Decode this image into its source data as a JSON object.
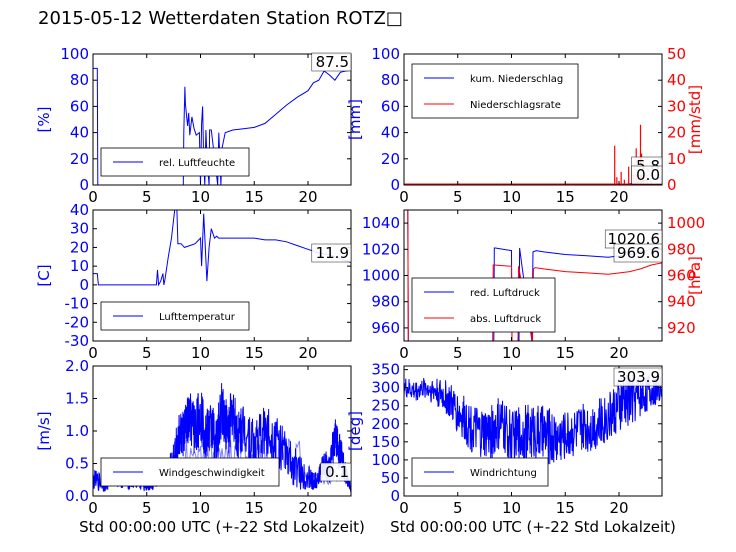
{
  "title": "2015-05-12 Wetterdaten Station ROTZ\u0000",
  "title_display": "2015-05-12 Wetterdaten Station ROTZ□",
  "colors": {
    "primary": "#0000ff",
    "secondary": "#ff0000",
    "light": "#8080ff"
  },
  "chart_data": [
    {
      "id": "humidity",
      "type": "line",
      "ylabel": "[%]",
      "xlabel": "",
      "xlim": [
        0,
        24
      ],
      "ylim": [
        0,
        100
      ],
      "xticks": [
        0,
        5,
        10,
        15,
        20
      ],
      "yticks": [
        0,
        20,
        40,
        60,
        80,
        100
      ],
      "legend": [
        "rel. Luftfeuchte"
      ],
      "legend_loc": "lower-left",
      "last_value": "87.5",
      "series": [
        {
          "name": "rel. Luftfeuchte",
          "color": "#0000ff",
          "x": [
            0,
            0.1,
            0.4,
            0.45,
            0.5,
            3,
            6,
            8.4,
            8.45,
            8.55,
            8.6,
            8.8,
            8.9,
            9.0,
            9.2,
            9.4,
            9.6,
            9.9,
            10.0,
            10.1,
            10.2,
            10.3,
            10.4,
            10.5,
            10.6,
            10.7,
            10.8,
            10.85,
            11.0,
            11.6,
            11.7,
            11.8,
            11.9,
            12.0,
            12.3,
            13,
            14,
            15,
            16,
            17,
            18,
            19,
            20,
            20.5,
            21,
            21.5,
            22,
            22.5,
            23,
            23.5,
            24
          ],
          "y": [
            89,
            89,
            89,
            0,
            0,
            0,
            0,
            0,
            40,
            75,
            62,
            45,
            55,
            38,
            52,
            43,
            38,
            40,
            0,
            47,
            60,
            18,
            0,
            42,
            22,
            10,
            0,
            42,
            42,
            0,
            40,
            20,
            0,
            28,
            40,
            42,
            43,
            44,
            47,
            54,
            61,
            67,
            72,
            78,
            80,
            87,
            84,
            80,
            86,
            87,
            87.5
          ]
        }
      ]
    },
    {
      "id": "precip",
      "type": "line",
      "ylabel": "[mm]",
      "ylabel_right": "[mm/std]",
      "xlabel": "",
      "xlim": [
        0,
        24
      ],
      "ylim": [
        0,
        100
      ],
      "ylim_right": [
        0,
        50
      ],
      "xticks": [
        0,
        5,
        10,
        15,
        20
      ],
      "yticks": [
        0,
        20,
        40,
        60,
        80,
        100
      ],
      "yticks_right": [
        0,
        10,
        20,
        30,
        40,
        50
      ],
      "legend": [
        "kum. Niederschlag",
        "Niederschlagsrate"
      ],
      "legend_loc": "upper-left",
      "last_value": "5.8",
      "last_value_right": "0.0",
      "series": [
        {
          "name": "kum. Niederschlag",
          "color": "#0000ff",
          "axis": "left",
          "x": [
            0,
            19.5,
            20,
            20.5,
            21,
            21.5,
            22,
            22.5,
            23,
            23.5,
            24
          ],
          "y": [
            0,
            0,
            0.2,
            0.5,
            1,
            1.5,
            2.5,
            3.5,
            4.8,
            5.5,
            5.8
          ]
        },
        {
          "name": "Niederschlagsrate",
          "color": "#ff0000",
          "axis": "right",
          "x": [
            19.6,
            19.8,
            20.2,
            20.5,
            20.9,
            21.2,
            21.4,
            21.6,
            21.8,
            22.0,
            22.1,
            22.3,
            22.6,
            23.0
          ],
          "y": [
            15,
            3,
            5,
            2,
            7,
            4,
            8,
            14,
            6,
            23,
            12,
            9,
            5,
            2
          ]
        }
      ]
    },
    {
      "id": "temperature",
      "type": "line",
      "ylabel": "[C]",
      "xlabel": "",
      "xlim": [
        0,
        24
      ],
      "ylim": [
        -30,
        40
      ],
      "xticks": [
        0,
        5,
        10,
        15,
        20
      ],
      "yticks": [
        -30,
        -20,
        -10,
        0,
        10,
        20,
        30,
        40
      ],
      "legend": [
        "Lufttemperatur"
      ],
      "legend_loc": "lower-left",
      "last_value": "11.9",
      "series": [
        {
          "name": "Lufttemperatur",
          "color": "#0000ff",
          "x": [
            0,
            0.4,
            0.5,
            3,
            5.9,
            6,
            6.1,
            6.3,
            6.5,
            6.6,
            6.7,
            7,
            7.3,
            7.6,
            7.8,
            7.9,
            8.2,
            8.5,
            9,
            9.5,
            10,
            10.1,
            10.3,
            10.6,
            10.8,
            11.0,
            11.3,
            11.5,
            11.7,
            12,
            13,
            14,
            15,
            16,
            17,
            18,
            19,
            20,
            21,
            22,
            23,
            24
          ],
          "y": [
            6,
            6,
            0,
            0,
            0,
            8,
            0,
            2,
            6,
            0,
            3,
            15,
            25,
            40,
            40,
            22,
            22,
            20,
            21,
            22,
            25,
            10,
            38,
            2,
            20,
            30,
            25,
            26,
            25,
            25,
            25,
            25,
            25,
            24,
            24,
            23,
            21,
            19,
            17,
            16,
            14,
            12
          ]
        }
      ]
    },
    {
      "id": "pressure",
      "type": "line",
      "ylabel": "",
      "ylabel_right": "[hPa]",
      "xlabel": "",
      "xlim": [
        0,
        24
      ],
      "ylim": [
        950,
        1050
      ],
      "ylim_right": [
        910,
        1010
      ],
      "xticks": [
        0,
        5,
        10,
        15,
        20
      ],
      "yticks": [
        960,
        980,
        1000,
        1020,
        1040
      ],
      "yticks_right": [
        920,
        940,
        960,
        980,
        1000
      ],
      "legend": [
        "red. Luftdruck",
        "abs. Luftdruck"
      ],
      "legend_loc": "lower-left",
      "last_value": "1020.6",
      "last_value_right": "969.6",
      "series": [
        {
          "name": "red. Luftdruck",
          "color": "#0000ff",
          "axis": "left",
          "x": [
            0,
            0.35,
            0.4,
            8.35,
            8.4,
            8.5,
            10,
            10.05,
            10.7,
            10.75,
            11.9,
            12.0,
            12.3,
            13,
            15,
            17,
            19,
            21,
            22,
            23,
            24
          ],
          "y": [
            1050,
            1050,
            950,
            950,
            1021,
            1021,
            1019,
            950,
            950,
            1021,
            950,
            1018,
            1019,
            1018,
            1016,
            1015,
            1014,
            1016,
            1018,
            1020,
            1020.6
          ]
        },
        {
          "name": "abs. Luftdruck",
          "color": "#ff0000",
          "axis": "right",
          "x": [
            0,
            0.35,
            0.4,
            8.25,
            8.3,
            8.4,
            10,
            10.05,
            10.6,
            10.65,
            11.95,
            12.05,
            12.2,
            13,
            15,
            17,
            19,
            21,
            22,
            23,
            24
          ],
          "y": [
            1010,
            1010,
            910,
            910,
            968,
            968,
            967,
            910,
            910,
            967,
            910,
            965,
            966,
            965,
            963,
            962,
            961,
            963,
            965,
            968,
            969.6
          ]
        }
      ]
    },
    {
      "id": "windspeed",
      "type": "line",
      "ylabel": "[m/s]",
      "xlabel": "Std 00:00:00 UTC (+-22 Std Lokalzeit)",
      "xlim": [
        0,
        24
      ],
      "ylim": [
        0,
        2.0
      ],
      "xticks": [
        0,
        5,
        10,
        15,
        20
      ],
      "yticks": [
        0.0,
        0.5,
        1.0,
        1.5,
        2.0
      ],
      "legend": [
        "Windgeschwindigkeit"
      ],
      "legend_loc": "lower-center",
      "last_value": "0.1",
      "series": [
        {
          "name": "Windgeschwindigkeit",
          "color": "#0000ff",
          "x": [
            0,
            1,
            2,
            3,
            4,
            5,
            6,
            7,
            7.5,
            8,
            8.5,
            9,
            9.5,
            10,
            10.5,
            11,
            11.5,
            12,
            12.5,
            13,
            13.5,
            14,
            15,
            16,
            17,
            18,
            19,
            20,
            20.5,
            21,
            21.5,
            22,
            22.5,
            23,
            23.5,
            24
          ],
          "y": [
            0.25,
            0.2,
            0.3,
            0.25,
            0.2,
            0.15,
            0.2,
            0.4,
            0.6,
            0.9,
            1.0,
            1.2,
            1.0,
            1.3,
            0.9,
            1.1,
            0.8,
            1.4,
            1.0,
            1.3,
            0.9,
            1.1,
            0.8,
            1.0,
            0.9,
            0.6,
            0.4,
            0.3,
            0.2,
            0.3,
            0.5,
            0.4,
            0.9,
            0.7,
            0.3,
            0.1
          ],
          "amplitude": [
            0.15,
            0.15,
            0.15,
            0.15,
            0.1,
            0.1,
            0.1,
            0.2,
            0.3,
            0.35,
            0.4,
            0.4,
            0.45,
            0.45,
            0.4,
            0.4,
            0.4,
            0.45,
            0.45,
            0.4,
            0.4,
            0.4,
            0.4,
            0.4,
            0.4,
            0.35,
            0.3,
            0.2,
            0.15,
            0.15,
            0.25,
            0.2,
            0.35,
            0.35,
            0.2,
            0.05
          ]
        }
      ]
    },
    {
      "id": "winddir",
      "type": "line",
      "ylabel": "[deg]",
      "xlabel": "Std 00:00:00 UTC (+-22 Std Lokalzeit)",
      "xlim": [
        0,
        24
      ],
      "ylim": [
        0,
        360
      ],
      "xticks": [
        0,
        5,
        10,
        15,
        20
      ],
      "yticks": [
        0,
        50,
        100,
        150,
        200,
        250,
        300,
        350
      ],
      "legend": [
        "Windrichtung"
      ],
      "legend_loc": "lower-left",
      "last_value": "303.9",
      "series": [
        {
          "name": "Windrichtung",
          "color": "#0000ff",
          "x": [
            0,
            1,
            2,
            3,
            4,
            5,
            6,
            7,
            8,
            9,
            10,
            11,
            12,
            13,
            14,
            15,
            16,
            17,
            18,
            19,
            20,
            21,
            22,
            23,
            24
          ],
          "y": [
            300,
            290,
            300,
            290,
            270,
            230,
            200,
            170,
            170,
            200,
            160,
            170,
            180,
            170,
            160,
            170,
            180,
            190,
            200,
            220,
            250,
            270,
            280,
            290,
            300
          ],
          "amplitude": [
            30,
            30,
            30,
            40,
            50,
            60,
            70,
            70,
            80,
            80,
            80,
            80,
            80,
            80,
            80,
            70,
            70,
            70,
            70,
            70,
            80,
            80,
            60,
            50,
            30
          ]
        }
      ]
    }
  ]
}
